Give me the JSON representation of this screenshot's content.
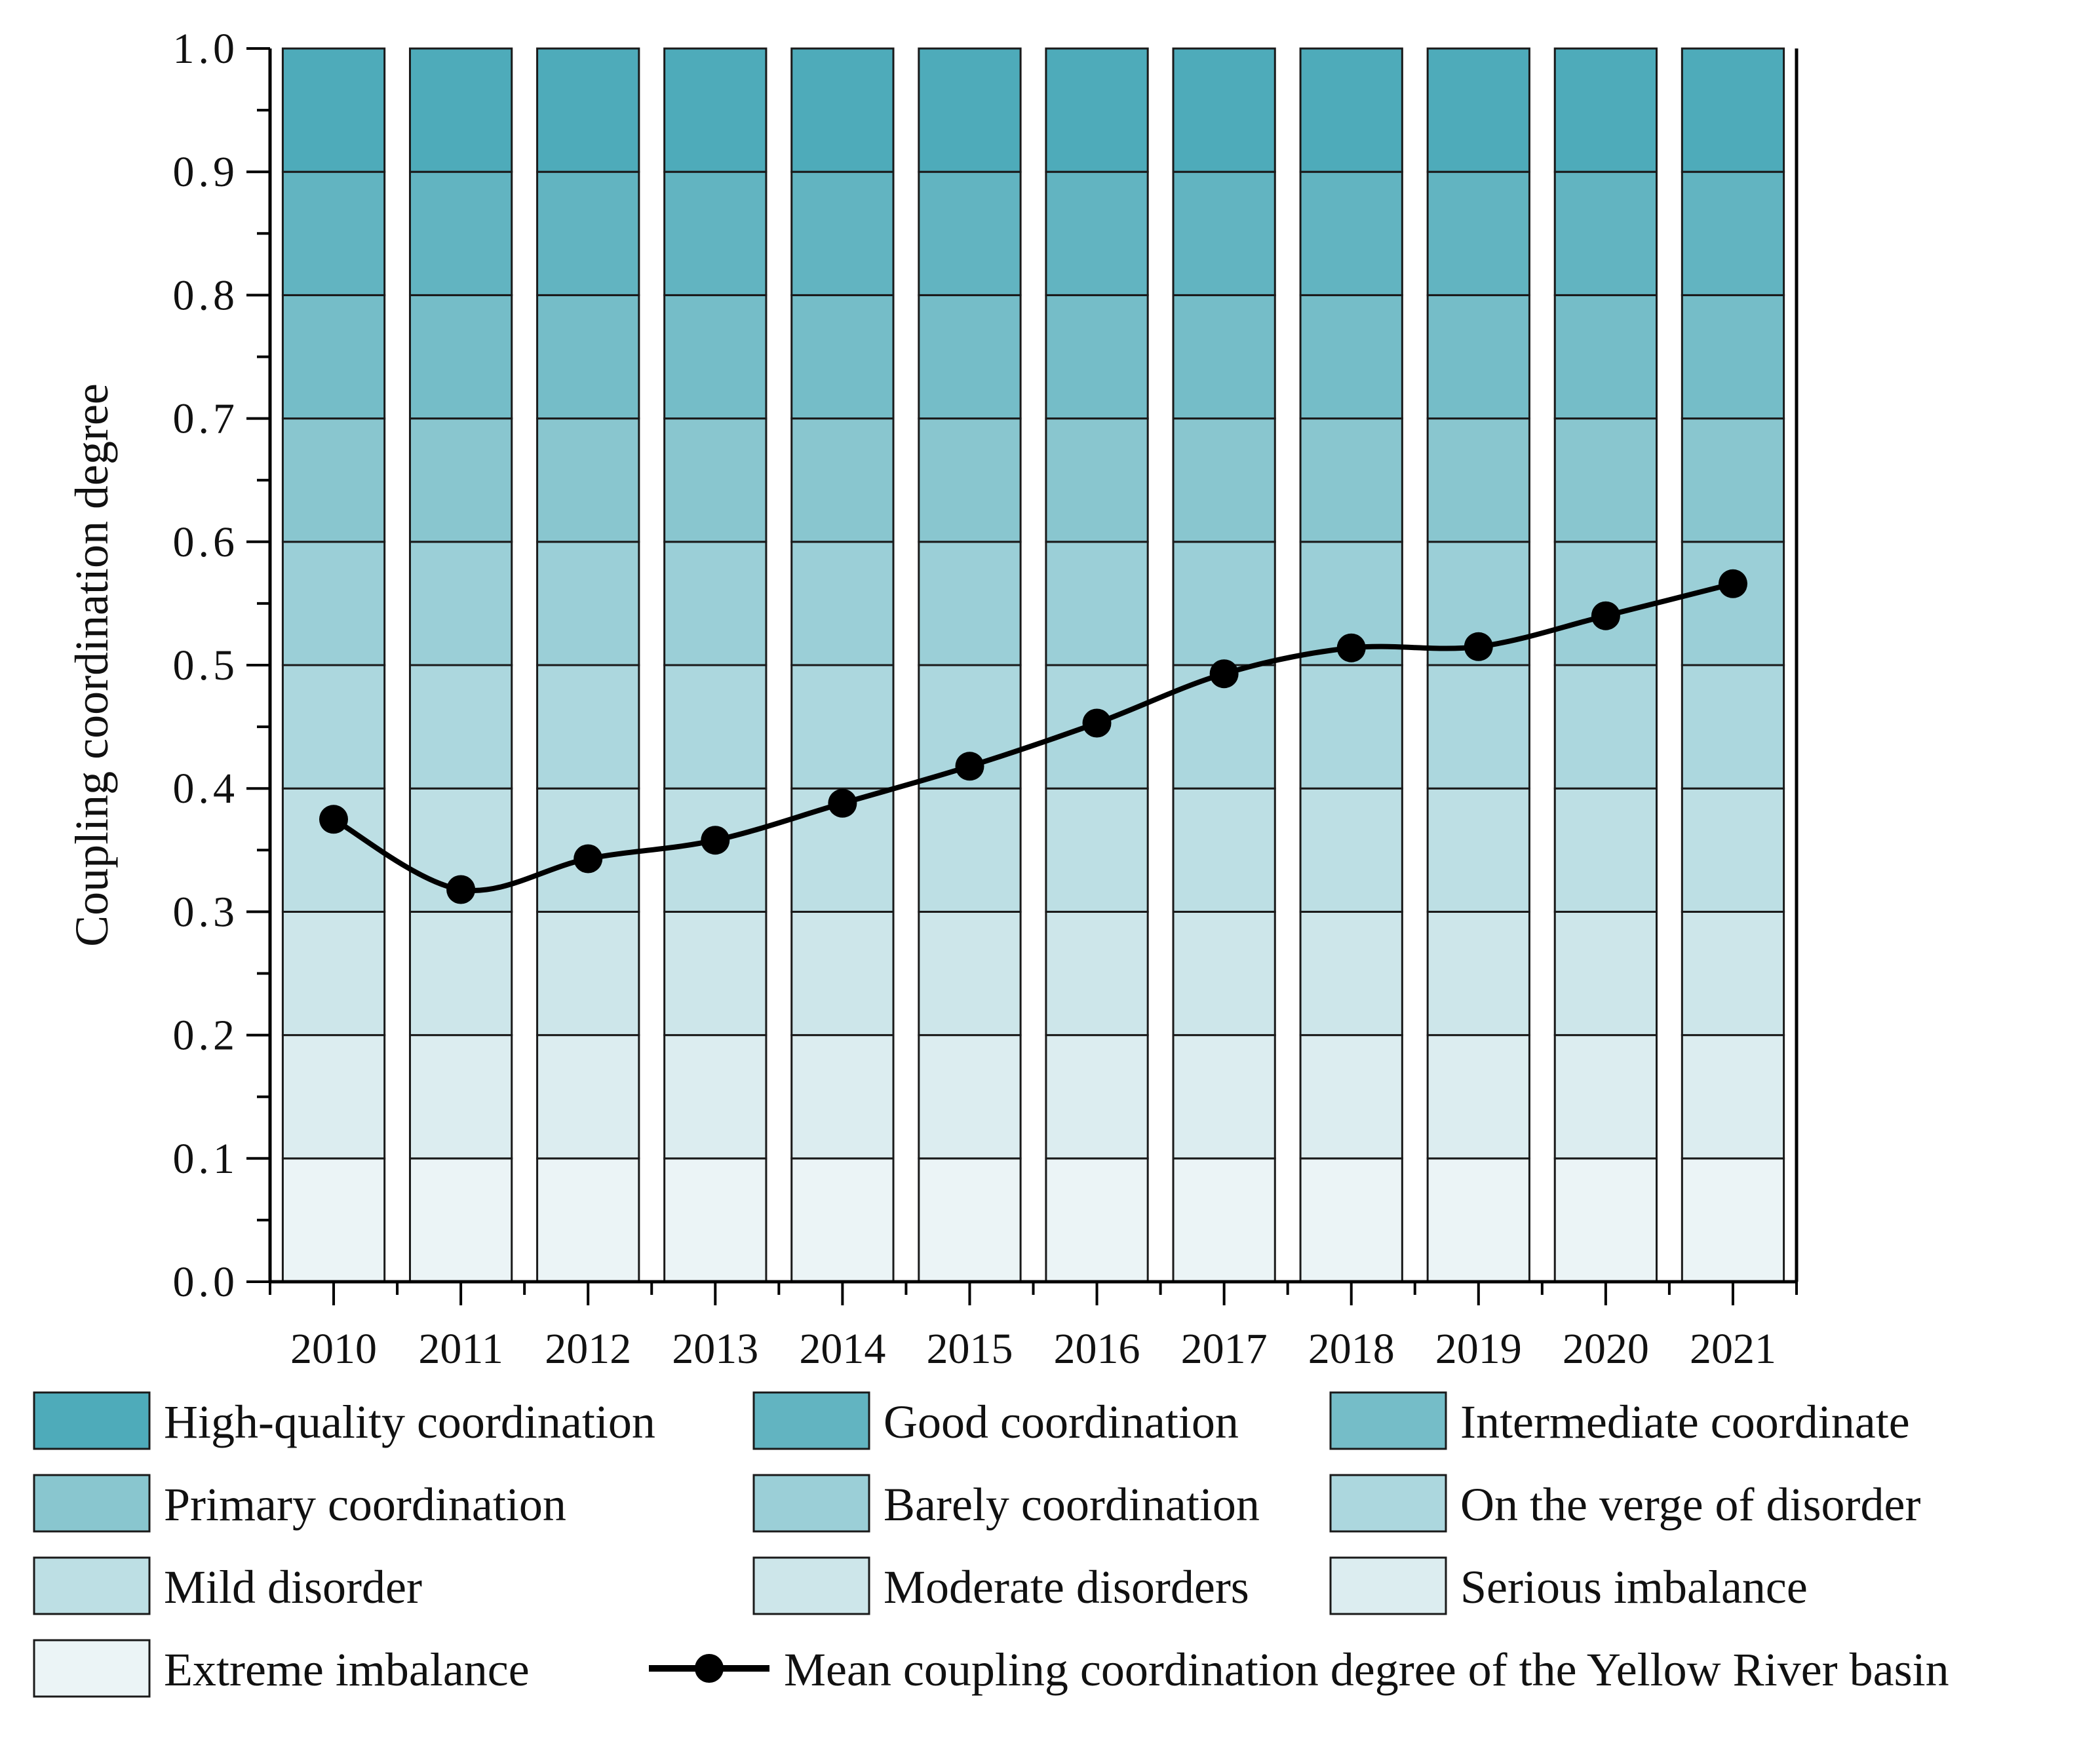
{
  "chart_data": {
    "type": "bar",
    "title": "",
    "xlabel": "",
    "ylabel": "Coupling coordination degree",
    "ylim": [
      0.0,
      1.0
    ],
    "y_ticks": [
      "0.0",
      "0.1",
      "0.2",
      "0.3",
      "0.4",
      "0.5",
      "0.6",
      "0.7",
      "0.8",
      "0.9",
      "1.0"
    ],
    "categories": [
      "2010",
      "2011",
      "2012",
      "2013",
      "2014",
      "2015",
      "2016",
      "2017",
      "2018",
      "2019",
      "2020",
      "2021"
    ],
    "bands": [
      {
        "name": "Extreme imbalance",
        "from": 0.0,
        "to": 0.1,
        "color": "#ebf4f6"
      },
      {
        "name": "Serious imbalance",
        "from": 0.1,
        "to": 0.2,
        "color": "#dcedf0"
      },
      {
        "name": "Moderate disorders",
        "from": 0.2,
        "to": 0.3,
        "color": "#cde6ea"
      },
      {
        "name": "Mild disorder",
        "from": 0.3,
        "to": 0.4,
        "color": "#bddfe4"
      },
      {
        "name": "On the verge of disorder",
        "from": 0.4,
        "to": 0.5,
        "color": "#acd7de"
      },
      {
        "name": "Barely coordination",
        "from": 0.5,
        "to": 0.6,
        "color": "#9bcfd7"
      },
      {
        "name": "Primary coordination",
        "from": 0.6,
        "to": 0.7,
        "color": "#89c6cf"
      },
      {
        "name": "Intermediate coordinate",
        "from": 0.7,
        "to": 0.8,
        "color": "#75bdc8"
      },
      {
        "name": "Good coordination",
        "from": 0.8,
        "to": 0.9,
        "color": "#62b4c1"
      },
      {
        "name": "High-quality coordination",
        "from": 0.9,
        "to": 1.0,
        "color": "#4eabba"
      }
    ],
    "series": [
      {
        "name": "Mean coupling coordination degree of the Yellow River basin",
        "type": "line",
        "color": "#000000",
        "values": [
          0.375,
          0.318,
          0.343,
          0.358,
          0.388,
          0.418,
          0.453,
          0.493,
          0.514,
          0.515,
          0.54,
          0.566
        ]
      }
    ],
    "legend": [
      {
        "label": "High-quality coordination",
        "color": "#4eabba"
      },
      {
        "label": "Good coordination",
        "color": "#62b4c1"
      },
      {
        "label": "Intermediate coordinate",
        "color": "#75bdc8"
      },
      {
        "label": "Primary coordination",
        "color": "#89c6cf"
      },
      {
        "label": "Barely coordination",
        "color": "#9bcfd7"
      },
      {
        "label": "On the verge of disorder",
        "color": "#acd7de"
      },
      {
        "label": "Mild disorder",
        "color": "#bddfe4"
      },
      {
        "label": "Moderate disorders",
        "color": "#cde6ea"
      },
      {
        "label": "Serious imbalance",
        "color": "#dcedf0"
      },
      {
        "label": "Extreme imbalance",
        "color": "#ebf4f6"
      },
      {
        "label": "Mean coupling coordination degree of the Yellow River basin",
        "color": "#000000",
        "marker": "line-dot"
      }
    ],
    "legend_position": "bottom"
  }
}
